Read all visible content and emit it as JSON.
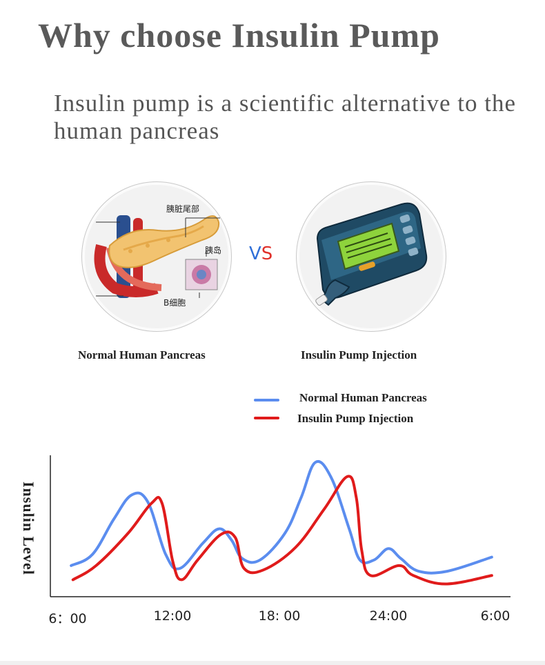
{
  "title": "Why choose Insulin Pump",
  "subtitle": "Insulin pump is a scientific alternative to the human pancreas",
  "pancreas_image": {
    "labels": {
      "tail": "胰脏尾部",
      "islet": "胰岛",
      "beta_cell": "B细胞"
    },
    "icon": "pancreas-illustration"
  },
  "pump_image": {
    "icon": "insulin-pump-illustration"
  },
  "vs": {
    "v": "V",
    "s": "S"
  },
  "captions": {
    "left": "Normal Human Pancreas",
    "right": "Insulin Pump Injection"
  },
  "colors": {
    "normal": "#5b8def",
    "pump": "#e01b1b",
    "vs_v": "#2f6fd8",
    "vs_s": "#e0302a"
  },
  "chart_data": {
    "type": "line",
    "ylabel": "Insulin Level",
    "xlabel": "",
    "x_ticks": [
      "6：00",
      "12:00",
      "18:  00",
      "24:00",
      "6:00"
    ],
    "x_range": [
      6,
      30
    ],
    "ylim": [
      0,
      100
    ],
    "legend_position": "top-right",
    "series": [
      {
        "name": "Normal Human Pancreas",
        "color": "#5b8def",
        "points": [
          [
            6.2,
            22
          ],
          [
            7.4,
            30
          ],
          [
            8.6,
            55
          ],
          [
            9.6,
            72
          ],
          [
            10.5,
            67
          ],
          [
            11.5,
            30
          ],
          [
            12.3,
            20
          ],
          [
            13.6,
            38
          ],
          [
            14.5,
            48
          ],
          [
            15.2,
            40
          ],
          [
            15.8,
            27
          ],
          [
            16.8,
            26
          ],
          [
            18.2,
            45
          ],
          [
            19.1,
            70
          ],
          [
            19.9,
            95
          ],
          [
            20.8,
            84
          ],
          [
            21.8,
            48
          ],
          [
            22.4,
            26
          ],
          [
            23.2,
            26
          ],
          [
            24.0,
            34
          ],
          [
            24.7,
            27
          ],
          [
            25.7,
            18
          ],
          [
            27.3,
            18
          ],
          [
            29.8,
            28
          ]
        ]
      },
      {
        "name": "Insulin Pump Injection",
        "color": "#e01b1b",
        "points": [
          [
            6.3,
            12
          ],
          [
            7.6,
            22
          ],
          [
            9.4,
            45
          ],
          [
            10.7,
            66
          ],
          [
            11.3,
            66
          ],
          [
            11.9,
            25
          ],
          [
            12.4,
            12
          ],
          [
            13.3,
            26
          ],
          [
            14.6,
            44
          ],
          [
            15.4,
            42
          ],
          [
            15.9,
            20
          ],
          [
            17.0,
            19
          ],
          [
            18.8,
            35
          ],
          [
            20.4,
            62
          ],
          [
            21.7,
            85
          ],
          [
            22.2,
            70
          ],
          [
            22.5,
            33
          ],
          [
            23.0,
            15
          ],
          [
            24.6,
            22
          ],
          [
            25.4,
            15
          ],
          [
            27.2,
            9
          ],
          [
            29.8,
            15
          ]
        ]
      }
    ]
  }
}
